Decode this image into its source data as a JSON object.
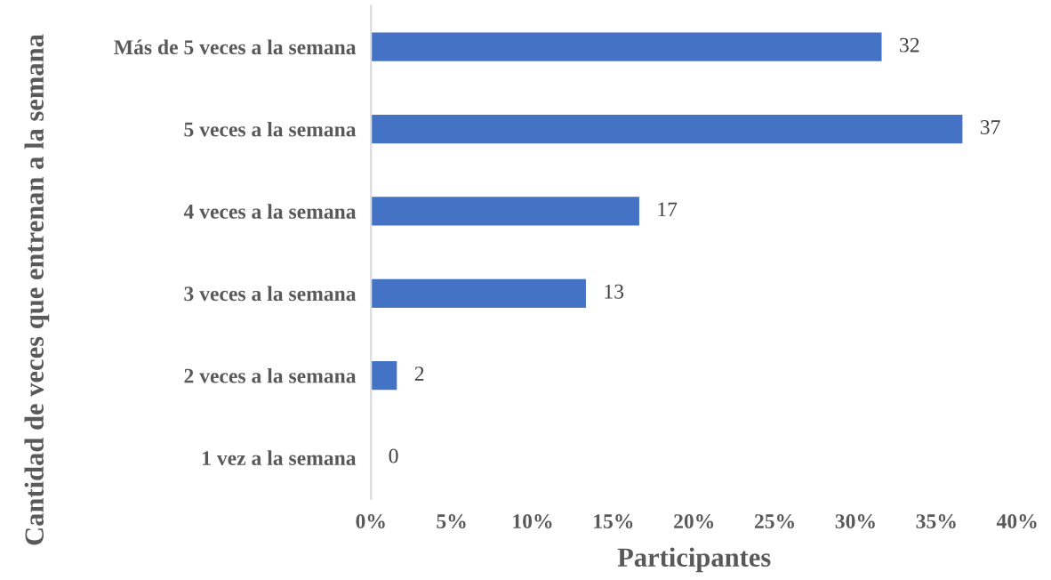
{
  "chart_data": {
    "type": "bar",
    "orientation": "horizontal",
    "xlabel": "Participantes",
    "ylabel": "Cantidad de veces que entrenan a la semana",
    "categories": [
      "Más de 5 veces a la semana",
      "5 veces a la semana",
      "4 veces a la semana",
      "3 veces a la semana",
      "2 veces a la semana",
      "1 vez a la semana"
    ],
    "values": [
      31.6,
      36.6,
      16.6,
      13.3,
      1.6,
      0
    ],
    "value_labels": [
      "32",
      "37",
      "17",
      "13",
      "2",
      "0"
    ],
    "color": "#4472c4",
    "xlim": [
      0,
      40
    ],
    "xticks": [
      {
        "value": 0,
        "label": "0%"
      },
      {
        "value": 5,
        "label": "5%"
      },
      {
        "value": 10,
        "label": "10%"
      },
      {
        "value": 15,
        "label": "15%"
      },
      {
        "value": 20,
        "label": "20%"
      },
      {
        "value": 25,
        "label": "25%"
      },
      {
        "value": 30,
        "label": "30%"
      },
      {
        "value": 35,
        "label": "35%"
      },
      {
        "value": 40,
        "label": "40%"
      }
    ],
    "grid": false,
    "legend": false
  }
}
